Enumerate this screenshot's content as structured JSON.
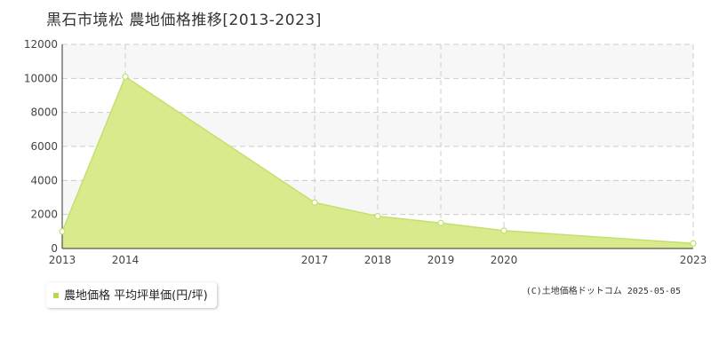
{
  "title": "黒石市境松 農地価格推移[2013-2023]",
  "credit": "(C)土地価格ドットコム 2025-05-05",
  "colors": {
    "fill": "#d9ea8c",
    "line": "#c2e070",
    "marker_fill": "#ffffff",
    "marker_stroke": "#c2e070",
    "grid": "#cccccc",
    "plot_band": "#f7f7f7",
    "axis": "#333333",
    "legend_swatch": "#b5d94a"
  },
  "chart_data": {
    "type": "area",
    "x": [
      2013,
      2014,
      2017,
      2018,
      2019,
      2020,
      2023
    ],
    "categories": [
      "2013",
      "2014",
      "2017",
      "2018",
      "2019",
      "2020",
      "2023"
    ],
    "series": [
      {
        "name": "農地価格 平均坪単価(円/坪)",
        "values": [
          1000,
          10100,
          2700,
          1900,
          1500,
          1050,
          300
        ]
      }
    ],
    "ylim": [
      0,
      12000
    ],
    "yticks": [
      0,
      2000,
      4000,
      6000,
      8000,
      10000,
      12000
    ],
    "ytick_labels": [
      "0",
      "2000",
      "4000",
      "6000",
      "8000",
      "10000",
      "12000"
    ],
    "grid": true,
    "legend_position": "bottom-left"
  }
}
